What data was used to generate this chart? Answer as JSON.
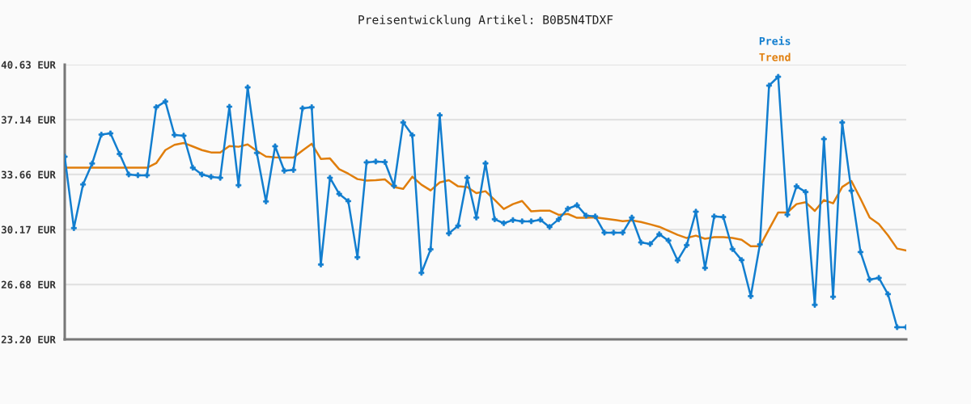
{
  "chart_data": {
    "type": "line",
    "title": "Preisentwicklung Artikel: B0B5N4TDXF",
    "categories": [
      null,
      null,
      null,
      null,
      null,
      null,
      null,
      null,
      null,
      null,
      null,
      null,
      null,
      null,
      null,
      null,
      null,
      null,
      null,
      null,
      null,
      null,
      null,
      null,
      null,
      null,
      null,
      null,
      null,
      null,
      null,
      null,
      null,
      null,
      null,
      null,
      null,
      null,
      null,
      null,
      null,
      null,
      null,
      null,
      null,
      null,
      null,
      null,
      null,
      null,
      null,
      null,
      null,
      null,
      null,
      null,
      null,
      null,
      null,
      null,
      null,
      null,
      null,
      null,
      null,
      null,
      null,
      null,
      null,
      null,
      null,
      null,
      null,
      null,
      null,
      null,
      null,
      null,
      null,
      null,
      null,
      null,
      null,
      null,
      null,
      null,
      null,
      null,
      null,
      null,
      null,
      null,
      null
    ],
    "series": [
      {
        "name": "Preis",
        "color": "#127ecf",
        "marker": "cross",
        "values": [
          34.79,
          30.26,
          33.03,
          34.36,
          36.19,
          36.27,
          34.96,
          33.66,
          33.61,
          33.61,
          37.93,
          38.29,
          36.17,
          36.12,
          34.09,
          33.66,
          33.51,
          33.45,
          37.96,
          32.98,
          39.19,
          35.03,
          31.95,
          35.45,
          33.9,
          33.95,
          37.86,
          37.93,
          27.95,
          33.45,
          32.43,
          31.97,
          28.41,
          34.43,
          34.48,
          34.45,
          32.94,
          36.96,
          36.15,
          27.42,
          28.91,
          37.42,
          29.92,
          30.41,
          33.45,
          30.93,
          34.37,
          30.82,
          30.57,
          30.77,
          30.69,
          30.69,
          30.79,
          30.33,
          30.82,
          31.49,
          31.71,
          31.05,
          31.0,
          29.97,
          29.97,
          29.97,
          30.93,
          29.35,
          29.25,
          29.87,
          29.47,
          28.21,
          29.18,
          31.3,
          27.73,
          31.0,
          30.96,
          28.93,
          28.23,
          25.94,
          29.22,
          39.3,
          39.86,
          31.11,
          32.91,
          32.55,
          25.39,
          35.91,
          25.9,
          36.96,
          32.63,
          28.74,
          26.99,
          27.1,
          26.07,
          23.97,
          23.97
        ]
      },
      {
        "name": "Trend",
        "color": "#e07e0c",
        "marker": "none",
        "values": [
          34.09,
          34.09,
          34.09,
          34.09,
          34.09,
          34.09,
          34.09,
          34.09,
          34.09,
          34.09,
          34.38,
          35.21,
          35.54,
          35.66,
          35.44,
          35.21,
          35.06,
          35.06,
          35.47,
          35.42,
          35.57,
          35.16,
          34.8,
          34.75,
          34.74,
          34.74,
          35.18,
          35.61,
          34.65,
          34.68,
          34.0,
          33.71,
          33.37,
          33.27,
          33.3,
          33.35,
          32.86,
          32.75,
          33.52,
          33.01,
          32.65,
          33.16,
          33.3,
          32.91,
          32.86,
          32.48,
          32.6,
          32.05,
          31.47,
          31.78,
          31.98,
          31.32,
          31.37,
          31.37,
          31.1,
          31.16,
          30.91,
          30.91,
          30.94,
          30.86,
          30.79,
          30.7,
          30.75,
          30.65,
          30.5,
          30.34,
          30.09,
          29.83,
          29.63,
          29.78,
          29.58,
          29.68,
          29.68,
          29.63,
          29.52,
          29.11,
          29.11,
          30.19,
          31.25,
          31.25,
          31.78,
          31.9,
          31.35,
          32.04,
          31.83,
          32.87,
          33.25,
          32.12,
          30.93,
          30.52,
          29.8,
          28.96,
          28.84
        ]
      }
    ],
    "ylim": [
      23.2,
      40.63
    ],
    "yticks": [
      {
        "value": 23.2,
        "label": "23.20 EUR"
      },
      {
        "value": 26.68,
        "label": "26.68 EUR"
      },
      {
        "value": 30.17,
        "label": "30.17 EUR"
      },
      {
        "value": 33.66,
        "label": "33.66 EUR"
      },
      {
        "value": 37.14,
        "label": "37.14 EUR"
      },
      {
        "value": 40.63,
        "label": "40.63 EUR"
      }
    ],
    "grid": "y",
    "legend": "top right",
    "tick_labels": "y",
    "line_style": "solid"
  }
}
